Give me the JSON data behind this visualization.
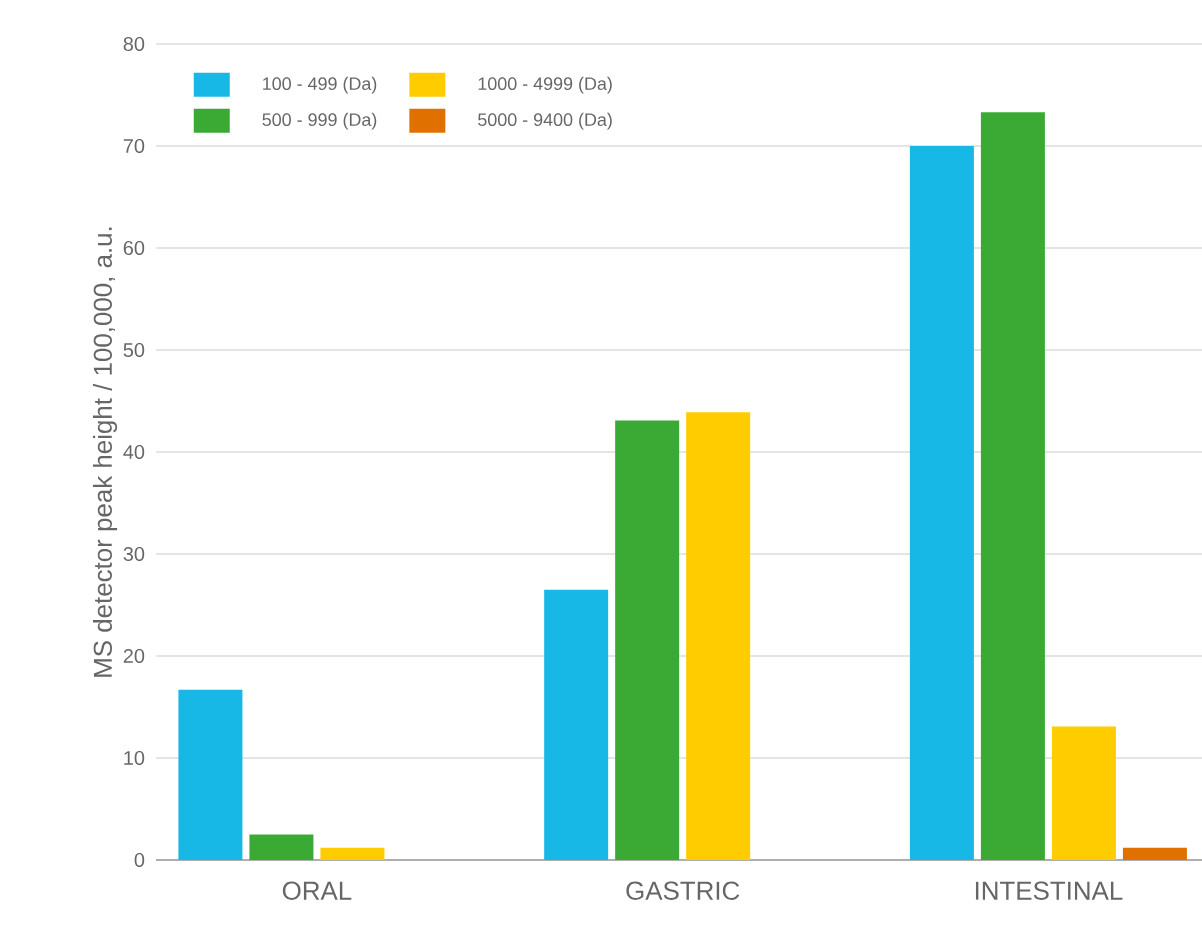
{
  "chart_data": {
    "type": "bar",
    "ylabel": "MS detector peak height / 100,000, a.u.",
    "categories": [
      "ORAL",
      "GASTRIC",
      "INTESTINAL"
    ],
    "series": [
      {
        "name": "100 - 499 (Da)",
        "color": "#17b8e6",
        "values": [
          16.7,
          26.5,
          70.0
        ]
      },
      {
        "name": "500 - 999 (Da)",
        "color": "#3aaa35",
        "values": [
          2.5,
          43.1,
          73.3
        ]
      },
      {
        "name": "1000 - 4999 (Da)",
        "color": "#ffcc00",
        "values": [
          1.2,
          43.9,
          13.1
        ]
      },
      {
        "name": "5000 - 9400 (Da)",
        "color": "#e07000",
        "values": [
          null,
          null,
          1.2
        ]
      }
    ],
    "ylim": [
      0,
      80
    ],
    "yticks": [
      0,
      10,
      20,
      30,
      40,
      50,
      60,
      70,
      80
    ],
    "grid": "y",
    "legend": "top left"
  }
}
